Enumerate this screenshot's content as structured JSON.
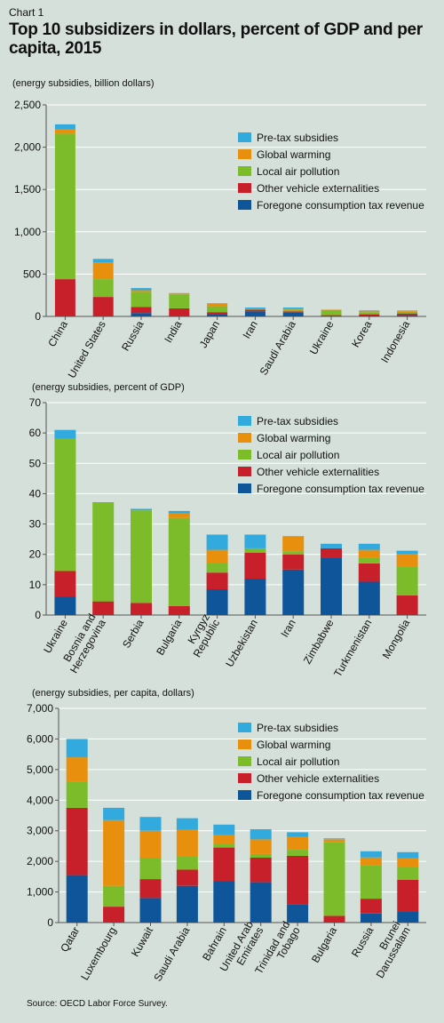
{
  "chart_label": "Chart 1",
  "title": "Top 10 subsidizers in dollars, percent of GDP and per capita, 2015",
  "source": "Source: OECD Labor Force Survey.",
  "colors": {
    "Pre-tax subsidies": "#33aadd",
    "Global warming": "#e8900e",
    "Local air pollution": "#7cbc2a",
    "Other vehicle externalities": "#c8202a",
    "Foregone consumption tax revenue": "#0f5599",
    "grid": "#ffffff",
    "axis": "#555555"
  },
  "chart_data": [
    {
      "type": "bar",
      "stacked": true,
      "subtitle": "(energy subsidies, billion dollars)",
      "categories": [
        "China",
        "United States",
        "Russia",
        "India",
        "Japan",
        "Iran",
        "Saudi Arabia",
        "Ukraine",
        "Korea",
        "Indonesia"
      ],
      "ylim": [
        0,
        2500
      ],
      "yticks": [
        "0",
        "500",
        "1,000",
        "1,500",
        "2,000",
        "2,500"
      ],
      "ytick_values": [
        0,
        500,
        1000,
        1500,
        2000,
        2500
      ],
      "grid": true,
      "legend_position": "top-right",
      "series": [
        {
          "name": "Foregone consumption tax revenue",
          "values": [
            0,
            0,
            40,
            0,
            30,
            60,
            45,
            0,
            10,
            15
          ]
        },
        {
          "name": "Other vehicle externalities",
          "values": [
            440,
            230,
            70,
            95,
            20,
            20,
            15,
            15,
            15,
            20
          ]
        },
        {
          "name": "Local air pollution",
          "values": [
            1720,
            210,
            180,
            160,
            70,
            10,
            20,
            60,
            20,
            20
          ]
        },
        {
          "name": "Global warming",
          "values": [
            50,
            200,
            20,
            15,
            30,
            5,
            15,
            5,
            15,
            10
          ]
        },
        {
          "name": "Pre-tax subsidies",
          "values": [
            60,
            40,
            25,
            5,
            5,
            10,
            10,
            0,
            10,
            5
          ]
        }
      ]
    },
    {
      "type": "bar",
      "stacked": true,
      "subtitle": "(energy subsidies, percent of GDP)",
      "categories": [
        "Ukraine",
        "Bosnia and Herzegovina",
        "Serbia",
        "Bulgaria",
        "Kyrgyz Republic",
        "Uzbekistan",
        "Iran",
        "Zimbabwe",
        "Turkmenistan",
        "Mongolia"
      ],
      "ylim": [
        0,
        70
      ],
      "yticks": [
        "0",
        "10",
        "20",
        "30",
        "40",
        "50",
        "60",
        "70"
      ],
      "ytick_values": [
        0,
        10,
        20,
        30,
        40,
        50,
        60,
        70
      ],
      "grid": true,
      "legend_position": "top-right",
      "series": [
        {
          "name": "Foregone consumption tax revenue",
          "values": [
            6,
            0,
            0,
            0,
            8.5,
            12,
            15,
            19,
            11,
            0
          ]
        },
        {
          "name": "Other vehicle externalities",
          "values": [
            8.5,
            4.5,
            4,
            3,
            5.5,
            8.5,
            5,
            3,
            6,
            6.5
          ]
        },
        {
          "name": "Local air pollution",
          "values": [
            43.5,
            32.5,
            30.5,
            29,
            3,
            1.5,
            1,
            0,
            2,
            9.5
          ]
        },
        {
          "name": "Global warming",
          "values": [
            0,
            0,
            0,
            1.5,
            4.5,
            0,
            5,
            0,
            2.5,
            4
          ]
        },
        {
          "name": "Pre-tax subsidies",
          "values": [
            3,
            0.2,
            0.5,
            0.8,
            5,
            4.5,
            0,
            1.5,
            2,
            1.2
          ]
        }
      ]
    },
    {
      "type": "bar",
      "stacked": true,
      "subtitle": "(energy subsidies, per capita, dollars)",
      "categories": [
        "Qatar",
        "Luxembourg",
        "Kuwait",
        "Saudi Arabia",
        "Bahrain",
        "United Arab Emirates",
        "Trinidad and Tobago",
        "Bulgaria",
        "Russia",
        "Brunei Darussalam"
      ],
      "ylim": [
        0,
        7000
      ],
      "yticks": [
        "0",
        "1,000",
        "2,000",
        "3,000",
        "4,000",
        "5,000",
        "6,000",
        "7,000"
      ],
      "ytick_values": [
        0,
        1000,
        2000,
        3000,
        4000,
        5000,
        6000,
        7000
      ],
      "grid": true,
      "legend_position": "top-right",
      "series": [
        {
          "name": "Foregone consumption tax revenue",
          "values": [
            1550,
            0,
            800,
            1200,
            1350,
            1320,
            600,
            0,
            300,
            350
          ]
        },
        {
          "name": "Other vehicle externalities",
          "values": [
            2200,
            520,
            620,
            530,
            1100,
            800,
            1580,
            220,
            480,
            1050
          ]
        },
        {
          "name": "Local air pollution",
          "values": [
            850,
            680,
            700,
            420,
            120,
            120,
            200,
            2400,
            1100,
            400
          ]
        },
        {
          "name": "Global warming",
          "values": [
            800,
            2150,
            880,
            880,
            280,
            480,
            420,
            100,
            250,
            300
          ]
        },
        {
          "name": "Pre-tax subsidies",
          "values": [
            600,
            400,
            450,
            380,
            350,
            330,
            150,
            30,
            200,
            200
          ]
        }
      ]
    }
  ]
}
